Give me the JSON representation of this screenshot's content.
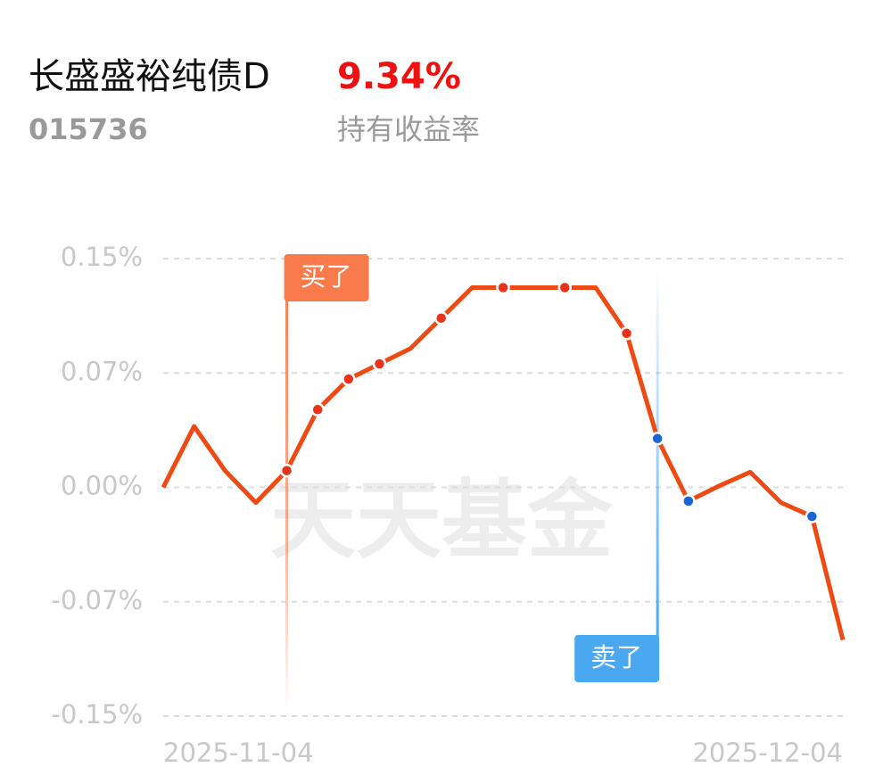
{
  "header": {
    "title": "长盛盛裕纯债D",
    "return": "9.34%",
    "code": "015736",
    "return_label": "持有收益率"
  },
  "chart_data": {
    "type": "line",
    "categories": [
      "2025-11-04",
      null,
      null,
      null,
      null,
      null,
      null,
      null,
      null,
      null,
      null,
      null,
      null,
      null,
      null,
      null,
      null,
      null,
      null,
      null,
      null,
      null,
      "2025-12-04"
    ],
    "series": [
      {
        "color": "#f04a14",
        "values": [
          0,
          0.04,
          0.011,
          -0.01,
          0.011,
          0.051,
          0.071,
          0.081,
          0.091,
          0.111,
          0.131,
          0.131,
          0.131,
          0.131,
          0.131,
          0.101,
          0.032,
          -0.009,
          0.001,
          0.01,
          -0.01,
          -0.019,
          -0.1
        ]
      }
    ],
    "ylim": [
      -0.15,
      0.15
    ],
    "yticks": [
      {
        "value": 0.15,
        "label": "0.15%"
      },
      {
        "value": 0.075,
        "label": "0.07%"
      },
      {
        "value": 0,
        "label": "0.00%"
      },
      {
        "value": -0.075,
        "label": "-0.07%"
      },
      {
        "value": -0.15,
        "label": "-0.15%"
      }
    ],
    "grid": true,
    "annotations": [
      "买了",
      "卖了"
    ],
    "watermark": "天天基金"
  }
}
